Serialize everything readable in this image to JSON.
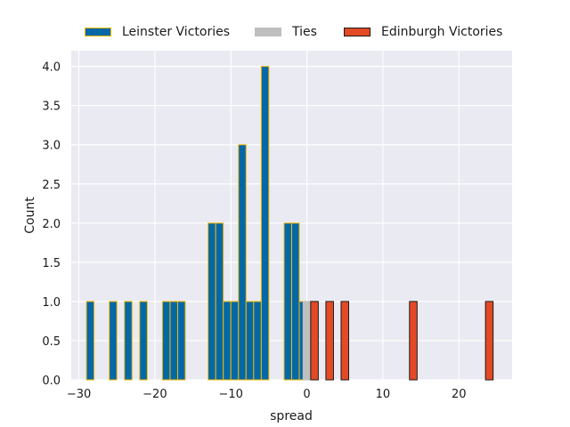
{
  "chart_data": {
    "type": "bar",
    "title": "",
    "xlabel": "spread",
    "ylabel": "Count",
    "xlim": [
      -31,
      27
    ],
    "ylim": [
      0,
      4.2
    ],
    "xticks": [
      -30,
      -20,
      -10,
      0,
      10,
      20
    ],
    "yticks": [
      0.0,
      0.5,
      1.0,
      1.5,
      2.0,
      2.5,
      3.0,
      3.5,
      4.0
    ],
    "xtick_labels": [
      "−30",
      "−20",
      "−10",
      "0",
      "10",
      "20"
    ],
    "ytick_labels": [
      "0.0",
      "0.5",
      "1.0",
      "1.5",
      "2.0",
      "2.5",
      "3.0",
      "3.5",
      "4.0"
    ],
    "grid": true,
    "legend_position": "top",
    "series": [
      {
        "name": "Leinster Victories",
        "color": "#0468a6",
        "edge_color": "#f5b800",
        "bars": [
          {
            "x0": -29,
            "x1": -28,
            "count": 1
          },
          {
            "x0": -26,
            "x1": -25,
            "count": 1
          },
          {
            "x0": -24,
            "x1": -23,
            "count": 1
          },
          {
            "x0": -22,
            "x1": -21,
            "count": 1
          },
          {
            "x0": -19,
            "x1": -18,
            "count": 1
          },
          {
            "x0": -18,
            "x1": -17,
            "count": 1
          },
          {
            "x0": -17,
            "x1": -16,
            "count": 1
          },
          {
            "x0": -13,
            "x1": -12,
            "count": 2
          },
          {
            "x0": -12,
            "x1": -11,
            "count": 2
          },
          {
            "x0": -11,
            "x1": -10,
            "count": 1
          },
          {
            "x0": -10,
            "x1": -9,
            "count": 1
          },
          {
            "x0": -9,
            "x1": -8,
            "count": 3
          },
          {
            "x0": -8,
            "x1": -7,
            "count": 1
          },
          {
            "x0": -7,
            "x1": -6,
            "count": 1
          },
          {
            "x0": -6,
            "x1": -5,
            "count": 4
          },
          {
            "x0": -3,
            "x1": -2,
            "count": 2
          },
          {
            "x0": -2,
            "x1": -1,
            "count": 2
          },
          {
            "x0": -1,
            "x1": 0,
            "count": 1
          }
        ]
      },
      {
        "name": "Ties",
        "color": "#bfbfbf",
        "edge_color": "#bfbfbf",
        "bars": [
          {
            "x0": -0.5,
            "x1": 0.5,
            "count": 1
          }
        ]
      },
      {
        "name": "Edinburgh Victories",
        "color": "#e34a26",
        "edge_color": "#1a1a1a",
        "bars": [
          {
            "x0": 0.5,
            "x1": 1.5,
            "count": 1
          },
          {
            "x0": 2.5,
            "x1": 3.5,
            "count": 1
          },
          {
            "x0": 4.5,
            "x1": 5.5,
            "count": 1
          },
          {
            "x0": 13.5,
            "x1": 14.5,
            "count": 1
          },
          {
            "x0": 23.5,
            "x1": 24.5,
            "count": 1
          }
        ]
      }
    ]
  }
}
